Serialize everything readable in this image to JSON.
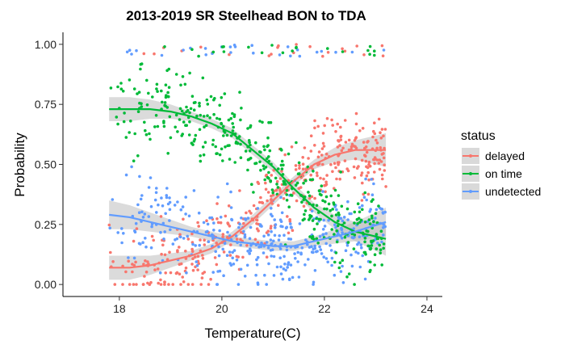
{
  "chart_data": {
    "type": "scatter",
    "title": "2013-2019 SR Steelhead BON to TDA",
    "xlabel": "Temperature(C)",
    "ylabel": "Probability",
    "xlim": [
      16.9,
      24.3
    ],
    "ylim": [
      -0.05,
      1.05
    ],
    "x_ticks": [
      "18",
      "20",
      "22",
      "24"
    ],
    "y_ticks": [
      "0.00",
      "0.25",
      "0.50",
      "0.75",
      "1.00"
    ],
    "grid": false,
    "legend": {
      "title": "status",
      "placement": "right",
      "entries": [
        "delayed",
        "on time",
        "undetected"
      ]
    },
    "series": [
      {
        "name": "delayed",
        "color": "#F8766D",
        "point_x_range": [
          17.8,
          23.2
        ],
        "smooth": {
          "x": [
            17.8,
            18.2,
            18.6,
            19.0,
            19.4,
            19.8,
            20.2,
            20.6,
            21.0,
            21.4,
            21.8,
            22.2,
            22.6,
            23.2
          ],
          "y": [
            0.07,
            0.07,
            0.08,
            0.1,
            0.12,
            0.15,
            0.2,
            0.27,
            0.35,
            0.43,
            0.5,
            0.54,
            0.56,
            0.56
          ]
        },
        "band_halfwidth": [
          0.05,
          0.05,
          0.04,
          0.03,
          0.02,
          0.02,
          0.02,
          0.02,
          0.02,
          0.02,
          0.02,
          0.03,
          0.04,
          0.07
        ]
      },
      {
        "name": "on time",
        "color": "#00BA38",
        "point_x_range": [
          17.8,
          23.2
        ],
        "smooth": {
          "x": [
            17.8,
            18.2,
            18.6,
            19.0,
            19.4,
            19.8,
            20.2,
            20.6,
            21.0,
            21.4,
            21.8,
            22.2,
            22.6,
            23.2
          ],
          "y": [
            0.73,
            0.73,
            0.73,
            0.72,
            0.7,
            0.67,
            0.63,
            0.56,
            0.49,
            0.4,
            0.32,
            0.26,
            0.22,
            0.19
          ]
        },
        "band_halfwidth": [
          0.05,
          0.05,
          0.04,
          0.03,
          0.02,
          0.02,
          0.02,
          0.02,
          0.02,
          0.02,
          0.02,
          0.03,
          0.04,
          0.07
        ]
      },
      {
        "name": "undetected",
        "color": "#619CFF",
        "point_x_range": [
          17.8,
          23.2
        ],
        "smooth": {
          "x": [
            17.8,
            18.2,
            18.6,
            19.0,
            19.4,
            19.8,
            20.2,
            20.6,
            21.0,
            21.4,
            21.8,
            22.2,
            22.6,
            23.2
          ],
          "y": [
            0.29,
            0.28,
            0.26,
            0.24,
            0.22,
            0.2,
            0.18,
            0.17,
            0.16,
            0.16,
            0.18,
            0.2,
            0.22,
            0.26
          ]
        },
        "band_halfwidth": [
          0.06,
          0.05,
          0.04,
          0.03,
          0.02,
          0.02,
          0.02,
          0.02,
          0.02,
          0.02,
          0.02,
          0.03,
          0.04,
          0.06
        ]
      }
    ]
  }
}
